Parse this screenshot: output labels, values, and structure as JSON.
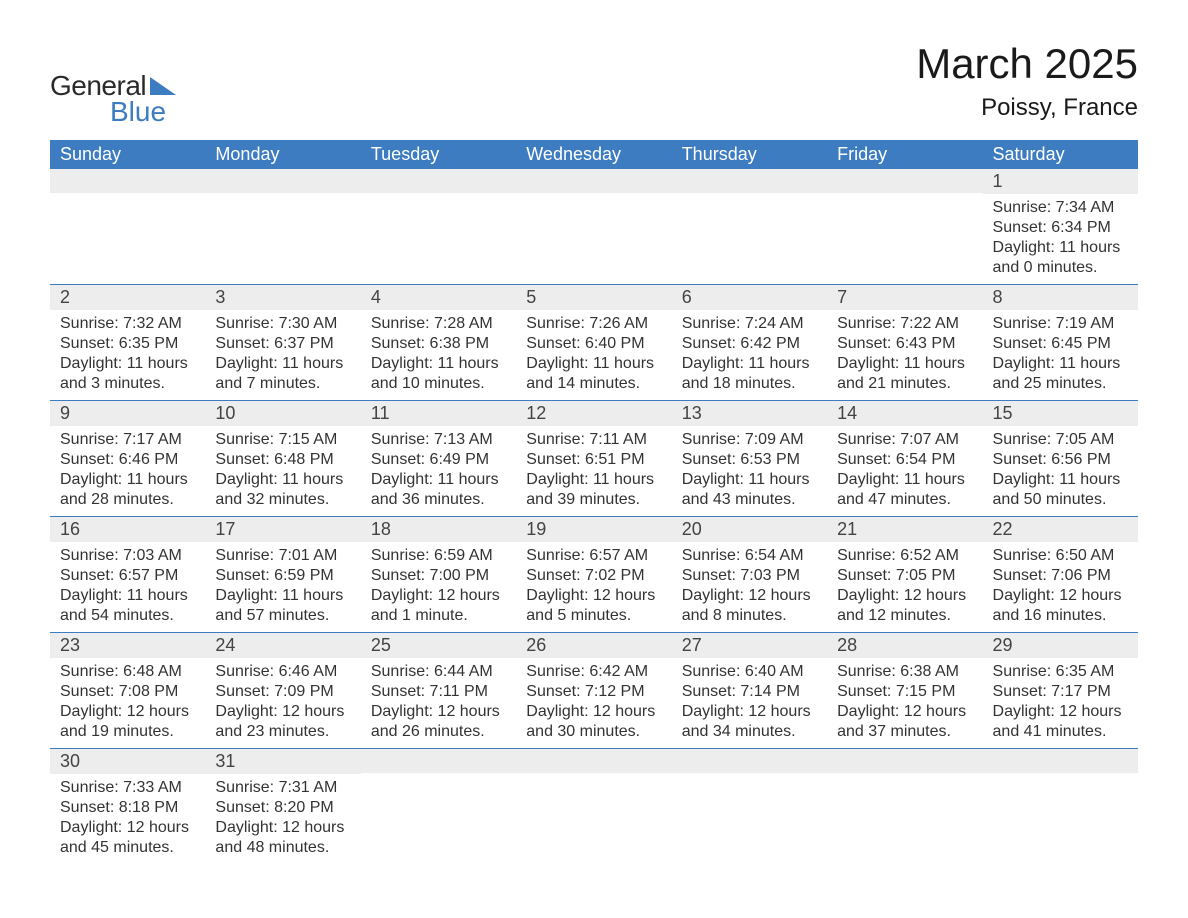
{
  "logo": {
    "word1": "General",
    "word2": "Blue",
    "accent_color": "#3d7cc0"
  },
  "title": "March 2025",
  "location": "Poissy, France",
  "colors": {
    "header_bg": "#3d7cc0",
    "header_text": "#ffffff",
    "daynum_bg": "#ededed",
    "row_divider": "#3d7cc0",
    "text": "#333333",
    "background": "#ffffff"
  },
  "typography": {
    "title_fontsize": 42,
    "location_fontsize": 24,
    "header_fontsize": 18,
    "daynum_fontsize": 18,
    "body_fontsize": 16
  },
  "day_headers": [
    "Sunday",
    "Monday",
    "Tuesday",
    "Wednesday",
    "Thursday",
    "Friday",
    "Saturday"
  ],
  "weeks": [
    [
      null,
      null,
      null,
      null,
      null,
      null,
      {
        "n": "1",
        "sunrise": "Sunrise: 7:34 AM",
        "sunset": "Sunset: 6:34 PM",
        "daylight": "Daylight: 11 hours and 0 minutes."
      }
    ],
    [
      {
        "n": "2",
        "sunrise": "Sunrise: 7:32 AM",
        "sunset": "Sunset: 6:35 PM",
        "daylight": "Daylight: 11 hours and 3 minutes."
      },
      {
        "n": "3",
        "sunrise": "Sunrise: 7:30 AM",
        "sunset": "Sunset: 6:37 PM",
        "daylight": "Daylight: 11 hours and 7 minutes."
      },
      {
        "n": "4",
        "sunrise": "Sunrise: 7:28 AM",
        "sunset": "Sunset: 6:38 PM",
        "daylight": "Daylight: 11 hours and 10 minutes."
      },
      {
        "n": "5",
        "sunrise": "Sunrise: 7:26 AM",
        "sunset": "Sunset: 6:40 PM",
        "daylight": "Daylight: 11 hours and 14 minutes."
      },
      {
        "n": "6",
        "sunrise": "Sunrise: 7:24 AM",
        "sunset": "Sunset: 6:42 PM",
        "daylight": "Daylight: 11 hours and 18 minutes."
      },
      {
        "n": "7",
        "sunrise": "Sunrise: 7:22 AM",
        "sunset": "Sunset: 6:43 PM",
        "daylight": "Daylight: 11 hours and 21 minutes."
      },
      {
        "n": "8",
        "sunrise": "Sunrise: 7:19 AM",
        "sunset": "Sunset: 6:45 PM",
        "daylight": "Daylight: 11 hours and 25 minutes."
      }
    ],
    [
      {
        "n": "9",
        "sunrise": "Sunrise: 7:17 AM",
        "sunset": "Sunset: 6:46 PM",
        "daylight": "Daylight: 11 hours and 28 minutes."
      },
      {
        "n": "10",
        "sunrise": "Sunrise: 7:15 AM",
        "sunset": "Sunset: 6:48 PM",
        "daylight": "Daylight: 11 hours and 32 minutes."
      },
      {
        "n": "11",
        "sunrise": "Sunrise: 7:13 AM",
        "sunset": "Sunset: 6:49 PM",
        "daylight": "Daylight: 11 hours and 36 minutes."
      },
      {
        "n": "12",
        "sunrise": "Sunrise: 7:11 AM",
        "sunset": "Sunset: 6:51 PM",
        "daylight": "Daylight: 11 hours and 39 minutes."
      },
      {
        "n": "13",
        "sunrise": "Sunrise: 7:09 AM",
        "sunset": "Sunset: 6:53 PM",
        "daylight": "Daylight: 11 hours and 43 minutes."
      },
      {
        "n": "14",
        "sunrise": "Sunrise: 7:07 AM",
        "sunset": "Sunset: 6:54 PM",
        "daylight": "Daylight: 11 hours and 47 minutes."
      },
      {
        "n": "15",
        "sunrise": "Sunrise: 7:05 AM",
        "sunset": "Sunset: 6:56 PM",
        "daylight": "Daylight: 11 hours and 50 minutes."
      }
    ],
    [
      {
        "n": "16",
        "sunrise": "Sunrise: 7:03 AM",
        "sunset": "Sunset: 6:57 PM",
        "daylight": "Daylight: 11 hours and 54 minutes."
      },
      {
        "n": "17",
        "sunrise": "Sunrise: 7:01 AM",
        "sunset": "Sunset: 6:59 PM",
        "daylight": "Daylight: 11 hours and 57 minutes."
      },
      {
        "n": "18",
        "sunrise": "Sunrise: 6:59 AM",
        "sunset": "Sunset: 7:00 PM",
        "daylight": "Daylight: 12 hours and 1 minute."
      },
      {
        "n": "19",
        "sunrise": "Sunrise: 6:57 AM",
        "sunset": "Sunset: 7:02 PM",
        "daylight": "Daylight: 12 hours and 5 minutes."
      },
      {
        "n": "20",
        "sunrise": "Sunrise: 6:54 AM",
        "sunset": "Sunset: 7:03 PM",
        "daylight": "Daylight: 12 hours and 8 minutes."
      },
      {
        "n": "21",
        "sunrise": "Sunrise: 6:52 AM",
        "sunset": "Sunset: 7:05 PM",
        "daylight": "Daylight: 12 hours and 12 minutes."
      },
      {
        "n": "22",
        "sunrise": "Sunrise: 6:50 AM",
        "sunset": "Sunset: 7:06 PM",
        "daylight": "Daylight: 12 hours and 16 minutes."
      }
    ],
    [
      {
        "n": "23",
        "sunrise": "Sunrise: 6:48 AM",
        "sunset": "Sunset: 7:08 PM",
        "daylight": "Daylight: 12 hours and 19 minutes."
      },
      {
        "n": "24",
        "sunrise": "Sunrise: 6:46 AM",
        "sunset": "Sunset: 7:09 PM",
        "daylight": "Daylight: 12 hours and 23 minutes."
      },
      {
        "n": "25",
        "sunrise": "Sunrise: 6:44 AM",
        "sunset": "Sunset: 7:11 PM",
        "daylight": "Daylight: 12 hours and 26 minutes."
      },
      {
        "n": "26",
        "sunrise": "Sunrise: 6:42 AM",
        "sunset": "Sunset: 7:12 PM",
        "daylight": "Daylight: 12 hours and 30 minutes."
      },
      {
        "n": "27",
        "sunrise": "Sunrise: 6:40 AM",
        "sunset": "Sunset: 7:14 PM",
        "daylight": "Daylight: 12 hours and 34 minutes."
      },
      {
        "n": "28",
        "sunrise": "Sunrise: 6:38 AM",
        "sunset": "Sunset: 7:15 PM",
        "daylight": "Daylight: 12 hours and 37 minutes."
      },
      {
        "n": "29",
        "sunrise": "Sunrise: 6:35 AM",
        "sunset": "Sunset: 7:17 PM",
        "daylight": "Daylight: 12 hours and 41 minutes."
      }
    ],
    [
      {
        "n": "30",
        "sunrise": "Sunrise: 7:33 AM",
        "sunset": "Sunset: 8:18 PM",
        "daylight": "Daylight: 12 hours and 45 minutes."
      },
      {
        "n": "31",
        "sunrise": "Sunrise: 7:31 AM",
        "sunset": "Sunset: 8:20 PM",
        "daylight": "Daylight: 12 hours and 48 minutes."
      },
      null,
      null,
      null,
      null,
      null
    ]
  ]
}
